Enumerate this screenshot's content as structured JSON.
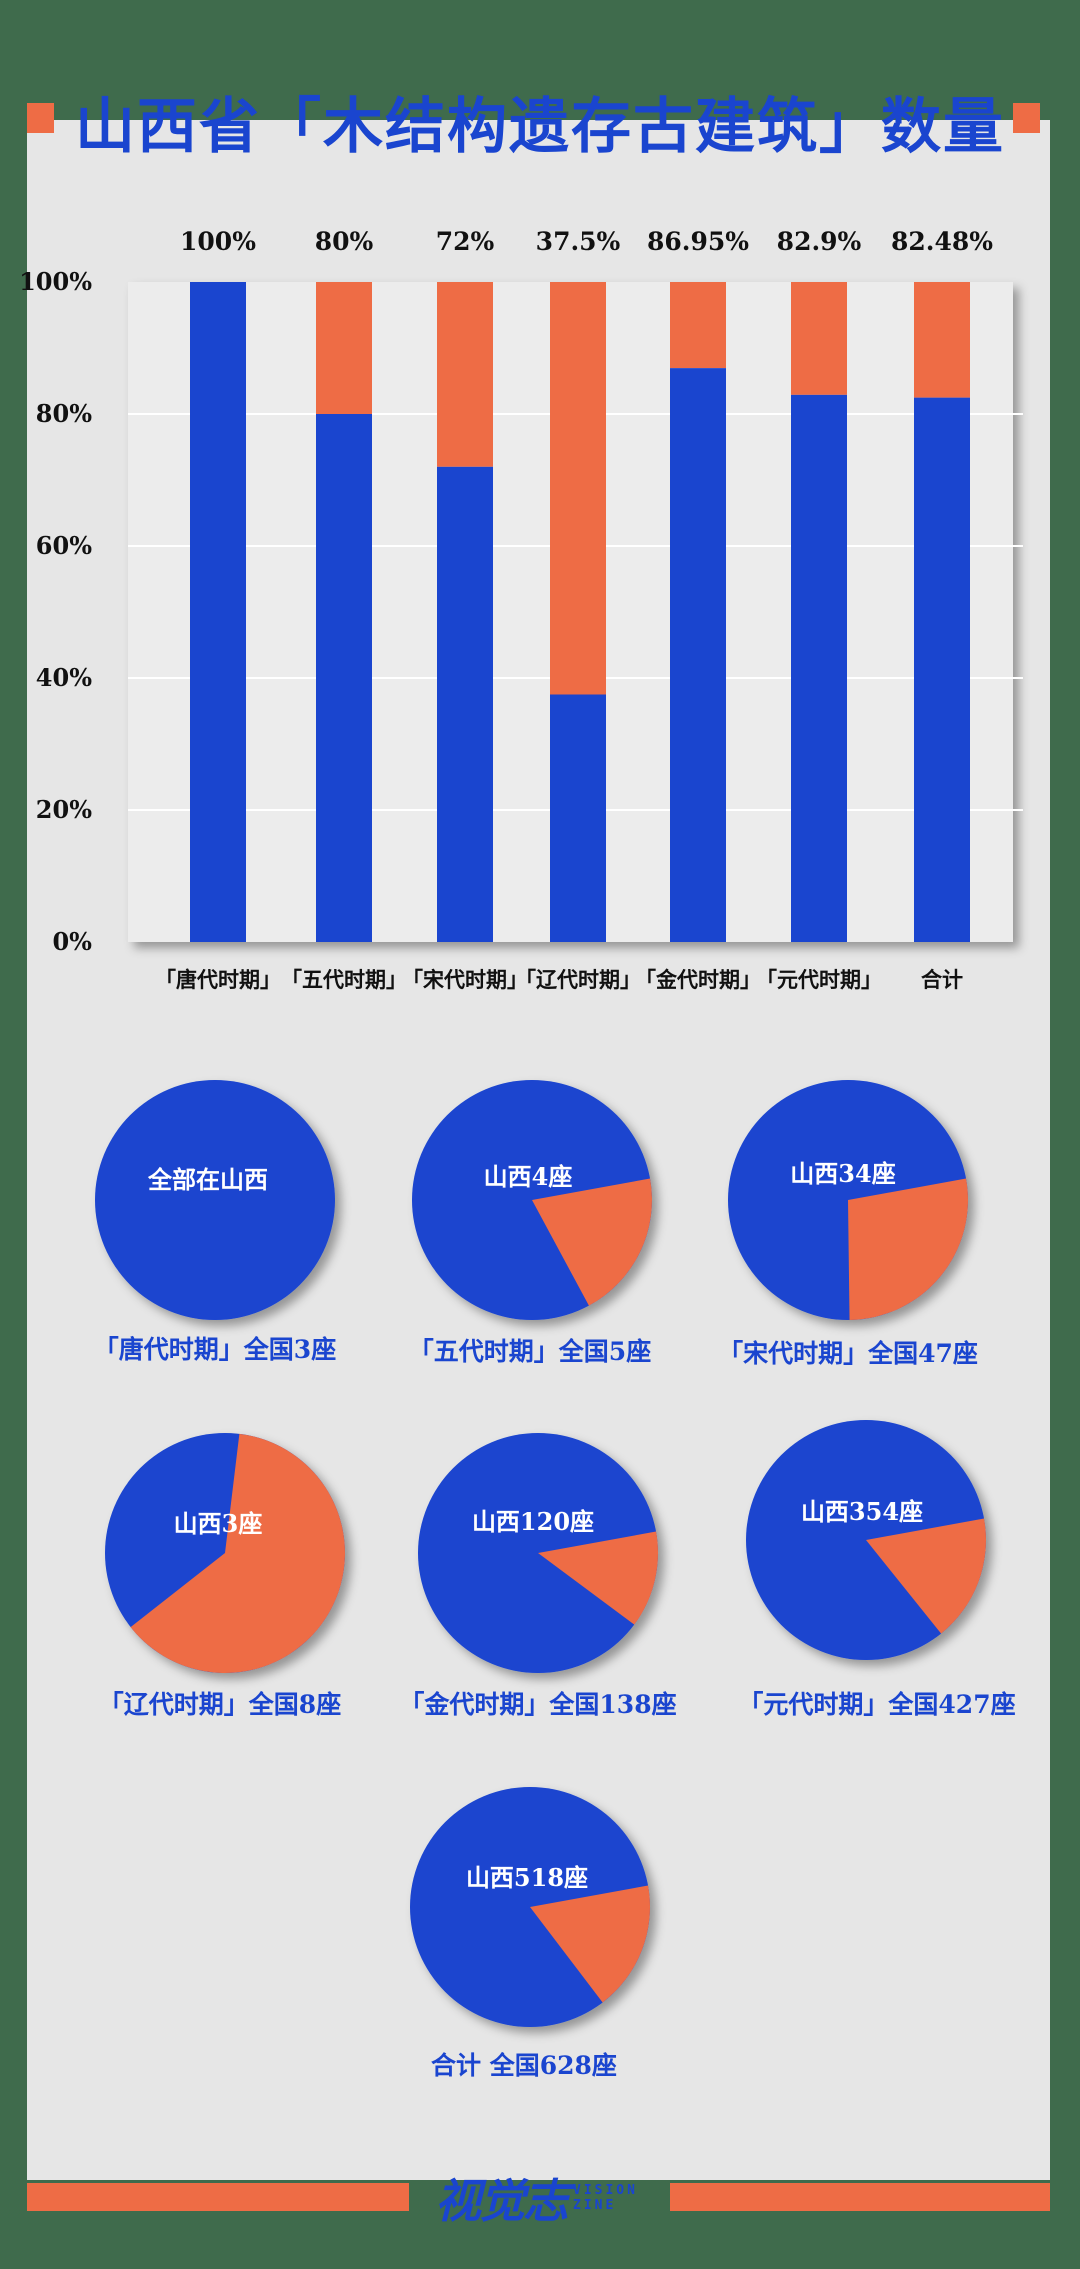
{
  "title": "山西省「木结构遗存古建筑」数量",
  "colors": {
    "shanxi": "#1a45cf",
    "other": "#ee6c45",
    "background": "#e6e6e6",
    "frame": "#3f6b4c"
  },
  "chart_data": [
    {
      "type": "bar",
      "stacked": true,
      "categories": [
        "「唐代时期」",
        "「五代时期」",
        "「宋代时期」",
        "「辽代时期」",
        "「金代时期」",
        "「元代时期」",
        "合计"
      ],
      "series": [
        {
          "values": [
            100,
            80,
            72,
            37.5,
            86.95,
            82.9,
            82.48
          ]
        },
        {
          "values": [
            0,
            20,
            28,
            62.5,
            13.05,
            17.1,
            17.52
          ]
        }
      ],
      "value_labels": [
        "100%",
        "80%",
        "72%",
        "37.5%",
        "86.95%",
        "82.9%",
        "82.48%"
      ],
      "yticks": [
        "0%",
        "20%",
        "40%",
        "60%",
        "80%",
        "100%"
      ],
      "ylim": [
        0,
        100
      ],
      "grid": true
    },
    {
      "type": "pie",
      "pies": [
        {
          "inner_label": "全部在山西",
          "caption": "「唐代时期」全国3座",
          "shanxi": 3,
          "total": 3
        },
        {
          "inner_label": "山西4座",
          "caption": "「五代时期」全国5座",
          "shanxi": 4,
          "total": 5
        },
        {
          "inner_label": "山西34座",
          "caption": "「宋代时期」全国47座",
          "shanxi": 34,
          "total": 47
        },
        {
          "inner_label": "山西3座",
          "caption": "「辽代时期」全国8座",
          "shanxi": 3,
          "total": 8
        },
        {
          "inner_label": "山西120座",
          "caption": "「金代时期」全国138座",
          "shanxi": 120,
          "total": 138
        },
        {
          "inner_label": "山西354座",
          "caption": "「元代时期」全国427座",
          "shanxi": 354,
          "total": 427
        },
        {
          "inner_label": "山西518座",
          "caption": "合计 全国628座",
          "shanxi": 518,
          "total": 628
        }
      ]
    }
  ],
  "footer": {
    "brand": "视觉志",
    "brand_sub_1": "VISION",
    "brand_sub_2": "ZINE"
  }
}
